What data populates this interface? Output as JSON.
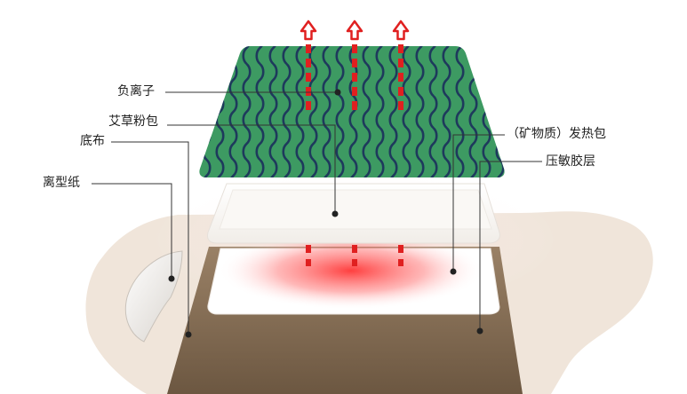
{
  "labels": {
    "negative_ion": "负离子",
    "mugwort_pack": "艾草粉包",
    "base_fabric": "底布",
    "release_paper": "离型纸",
    "heat_pack": "（矿物质）发热包",
    "adhesive_layer": "压敏胶层"
  },
  "colors": {
    "green_layer": "#3d9a62",
    "wave_lines": "#1e3a5c",
    "heat_arrows": "#e02020",
    "base_fabric": "#86705a",
    "release_paper": "#f0e5da",
    "adhesive_pad": "#ffffff",
    "heat_glow": "#ff3030"
  },
  "icons": {
    "arrows": "up-arrow-icon"
  }
}
